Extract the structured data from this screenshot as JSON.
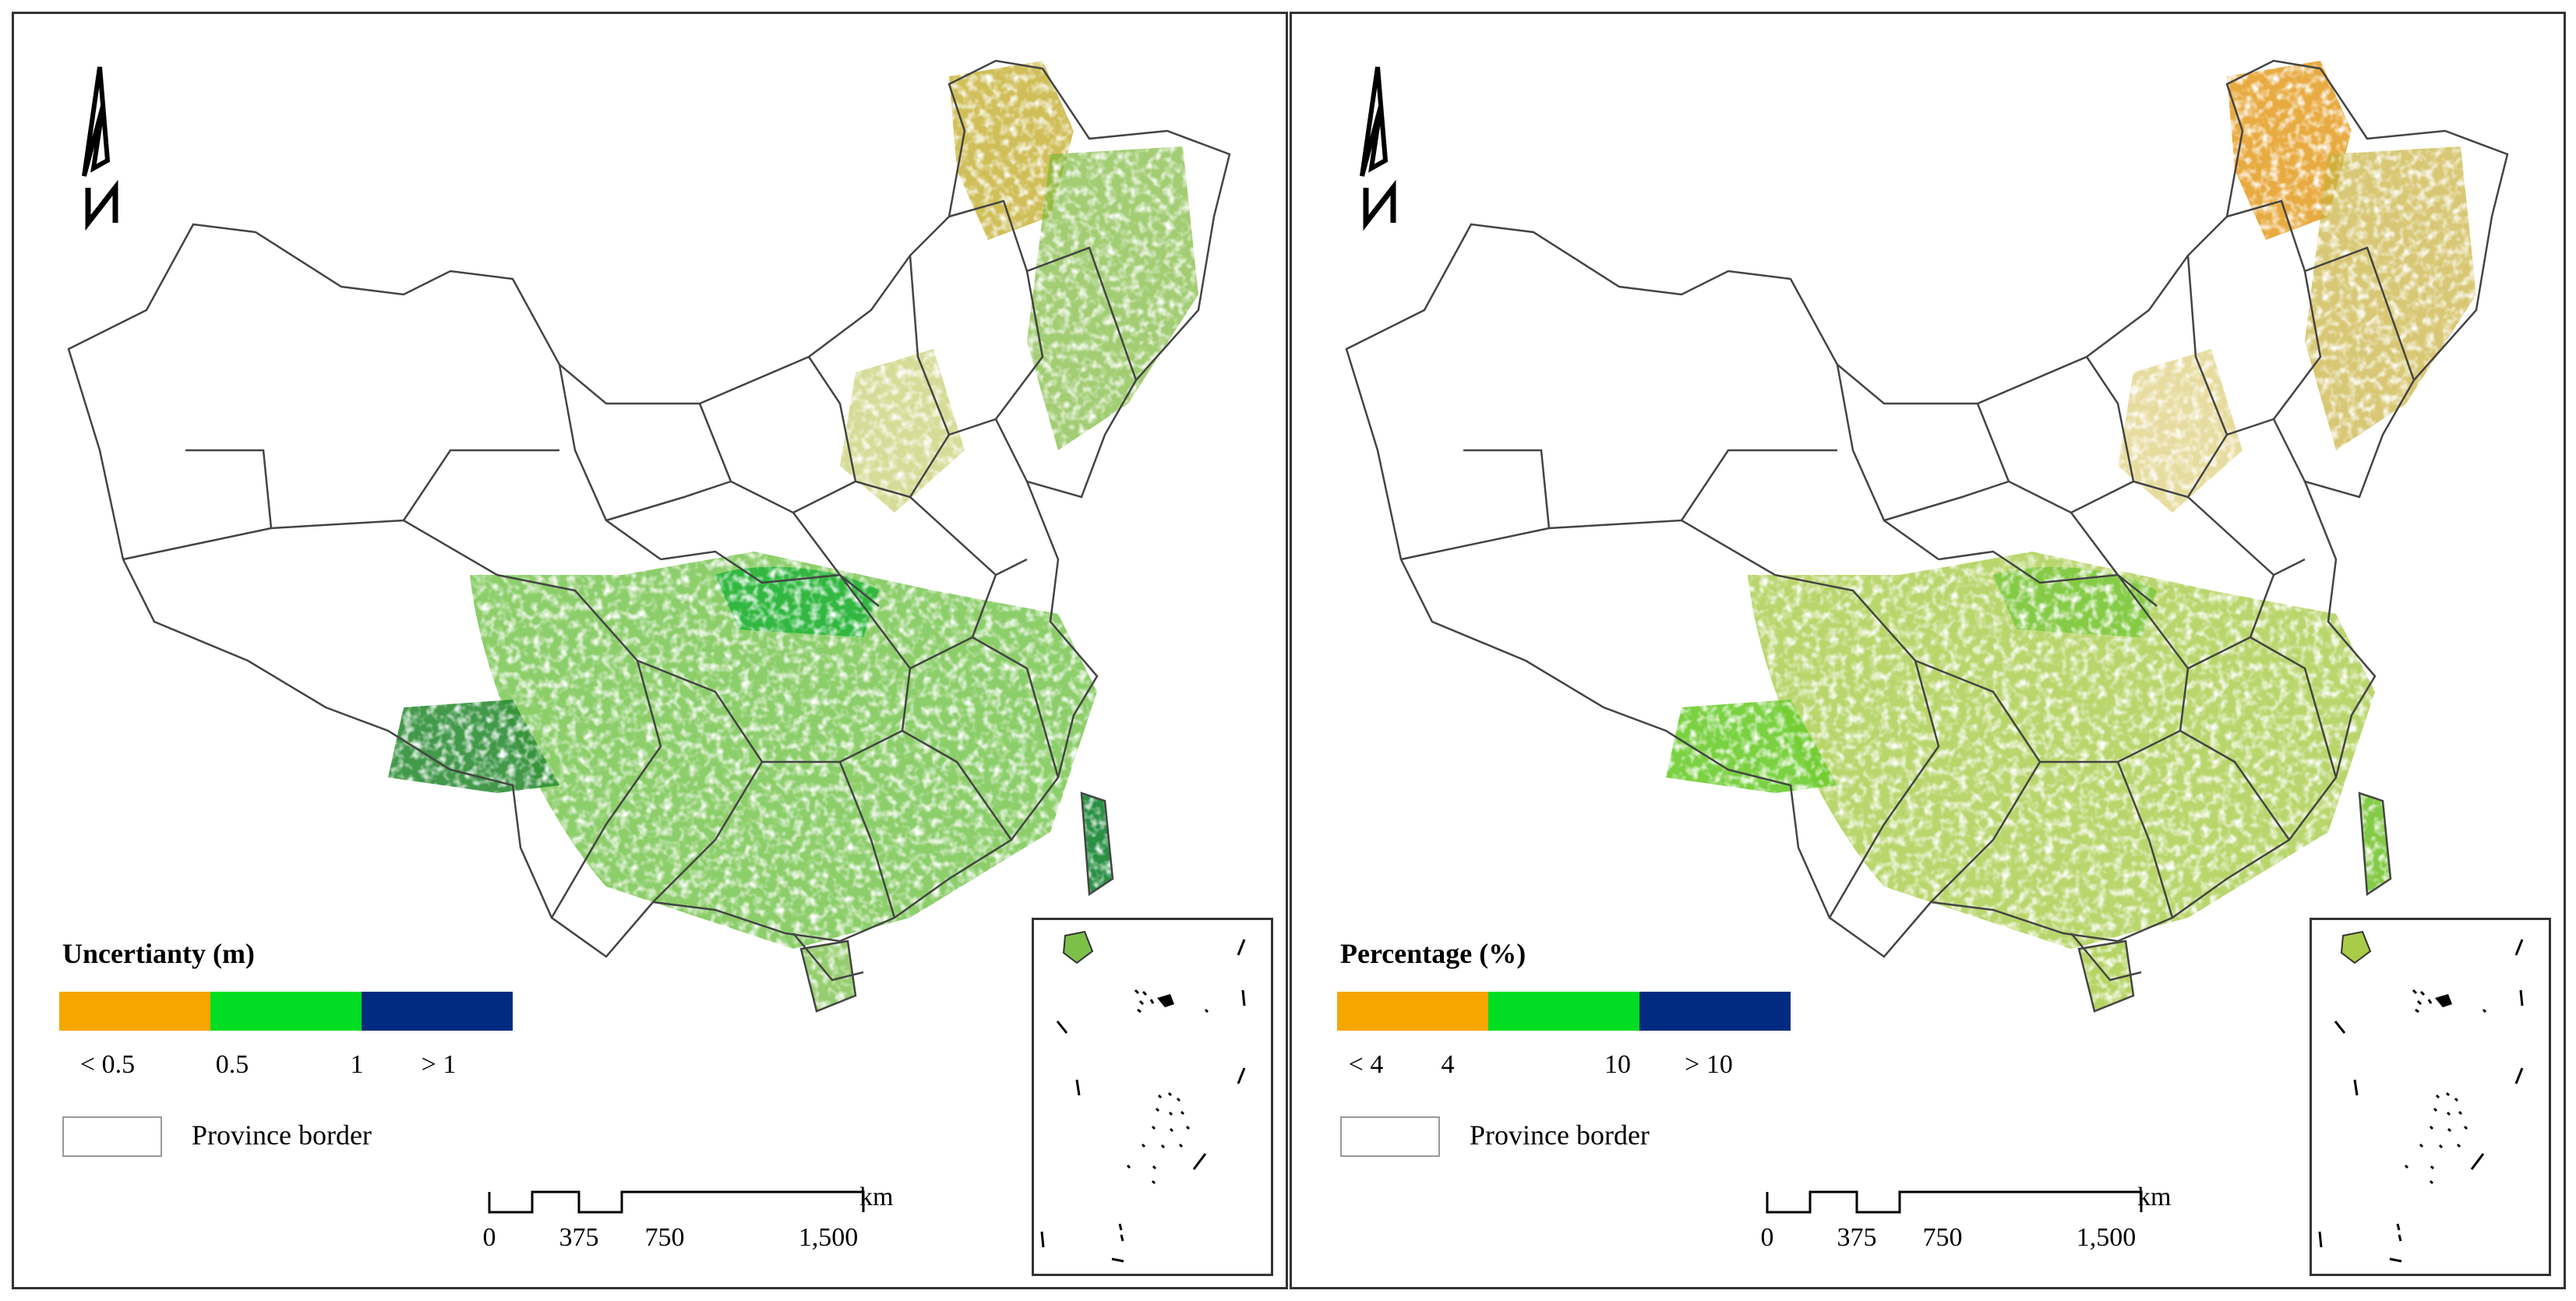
{
  "panels": [
    {
      "id": "left",
      "legend_title": "Uncertianty (m)",
      "legend_colors": [
        "#F7A600",
        "#00DD22",
        "#002B80"
      ],
      "ticks": [
        "< 0.5",
        "0.5",
        "1",
        "> 1"
      ],
      "border_label": "Province border",
      "scale_labels": [
        "0",
        "375",
        "750",
        "1,500"
      ],
      "scale_unit": "km",
      "north_icon": "north-arrow-icon"
    },
    {
      "id": "right",
      "legend_title": "Percentage (%)",
      "legend_colors": [
        "#F7A600",
        "#00DD22",
        "#002B80"
      ],
      "ticks": [
        "< 4",
        "4",
        "10",
        "> 10"
      ],
      "border_label": "Province border",
      "scale_labels": [
        "0",
        "375",
        "750",
        "1,500"
      ],
      "scale_unit": "km",
      "north_icon": "north-arrow-icon"
    }
  ],
  "colors": {
    "left_map": {
      "north": "#C8B43C",
      "south": "#6CC040",
      "southwest": "#2E8E36",
      "taiwan": "#1F8A3A"
    },
    "right_map": {
      "north": "#E6A22C",
      "south": "#A8CC48",
      "southwest": "#6CCC2C",
      "taiwan": "#7CC83C"
    }
  }
}
